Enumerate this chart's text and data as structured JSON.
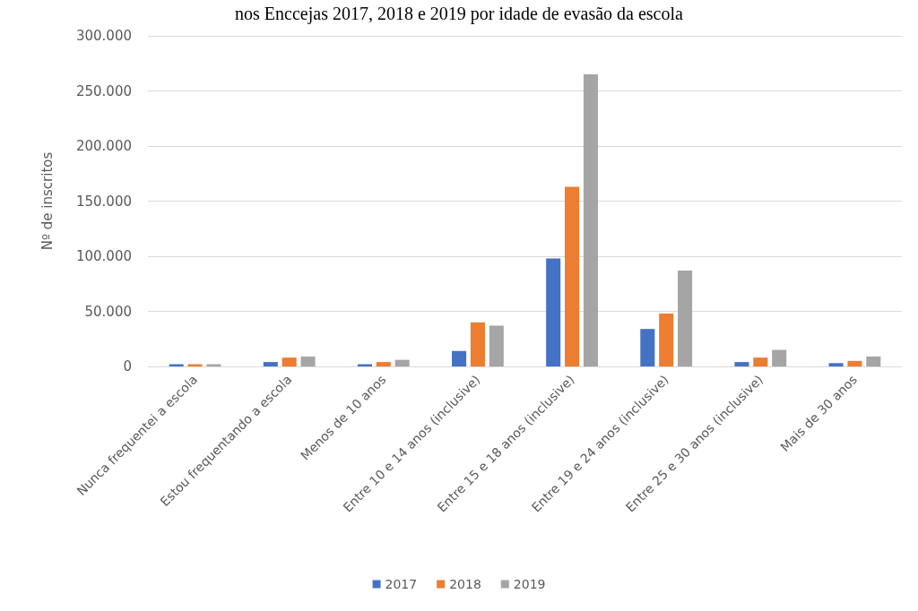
{
  "chart_data": {
    "type": "bar",
    "title": "nos Enccejas 2017, 2018 e 2019 por idade de evasão da escola",
    "ylabel": "Nº de inscritos",
    "categories": [
      "Nunca frequentei a escola",
      "Estou frequentando a escola",
      "Menos de 10 anos",
      "Entre 10 e 14 anos (inclusive)",
      "Entre 15 e 18 anos (inclusive)",
      "Entre 19 e 24 anos (inclusive)",
      "Entre 25 e 30 anos (inclusive)",
      "Mais de 30 anos"
    ],
    "series": [
      {
        "name": "2017",
        "color": "#4472c4",
        "values": [
          2000,
          4000,
          2000,
          14000,
          98000,
          34000,
          4000,
          3000
        ]
      },
      {
        "name": "2018",
        "color": "#ed7d31",
        "values": [
          2000,
          8000,
          4000,
          40000,
          163000,
          48000,
          8000,
          5000
        ]
      },
      {
        "name": "2019",
        "color": "#a5a5a5",
        "values": [
          2000,
          9000,
          6000,
          37000,
          265000,
          87000,
          15000,
          9000
        ]
      }
    ],
    "ylim": [
      0,
      300000
    ],
    "yticks": [
      0,
      {
        "value": 50000,
        "label": "50.000"
      },
      {
        "value": 100000,
        "label": "100.000"
      },
      {
        "value": 150000,
        "label": "150.000"
      },
      {
        "value": 200000,
        "label": "200.000"
      },
      {
        "value": 250000,
        "label": "250.000"
      },
      {
        "value": 300000,
        "label": "300.000"
      }
    ],
    "grid": "y",
    "legend": "bottom"
  }
}
